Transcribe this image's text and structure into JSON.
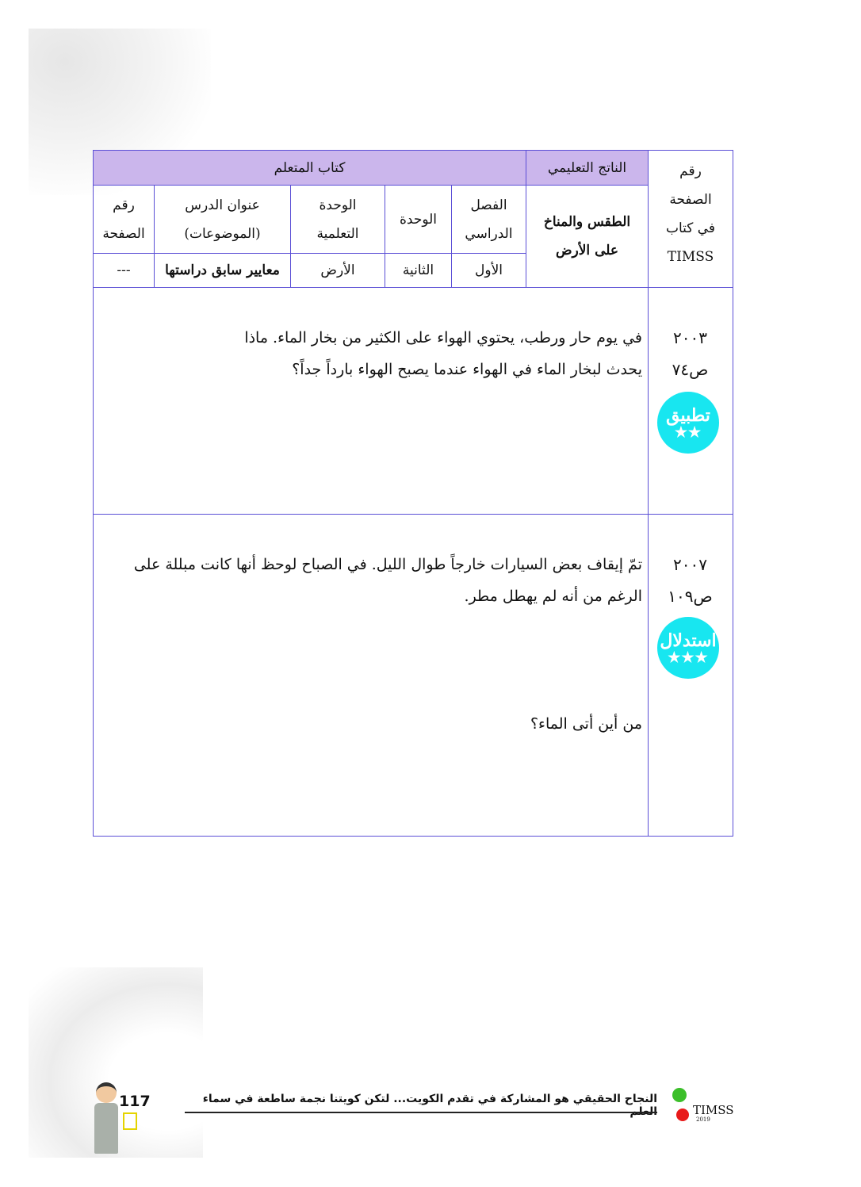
{
  "header_table": {
    "timss_page_header": "رقم الصفحة في كتاب TIMSS",
    "learning_outcome_header": "الناتج التعليمي",
    "student_book_header": "كتاب المتعلم",
    "learning_outcome_value": "الطقس والمناخ على الأرض",
    "columns": [
      {
        "label": "الفصل الدراسي",
        "value": "الأول"
      },
      {
        "label": "الوحدة",
        "value": "الثانية"
      },
      {
        "label": "الوحدة التعلمية",
        "value": "الأرض"
      },
      {
        "label": "عنوان الدرس (الموضوعات)",
        "value": "معايير سابق دراستها"
      },
      {
        "label": "رقم الصفحة",
        "value": "---"
      }
    ]
  },
  "questions": [
    {
      "year": "٢٠٠٣",
      "page": "ص٧٤",
      "badge": "تطبيق",
      "stars": "★★",
      "text": "في يوم حار ورطب، يحتوي الهواء على الكثير من بخار الماء. ماذا يحدث لبخار الماء في الهواء عندما يصبح الهواء بارداً جداً؟",
      "sub": ""
    },
    {
      "year": "٢٠٠٧",
      "page": "ص١٠٩",
      "badge": "استدلال",
      "stars": "★★★",
      "text": "تمّ إيقاف بعض السيارات خارجاً طوال الليل. في الصباح لوحظ أنها كانت مبللة على الرغم من أنه لم يهطل مطر.",
      "sub": "من أين أتى الماء؟"
    }
  ],
  "footer": {
    "slogan": "النجاح الحقيقي هو المشاركة في تقدم الكويت... لتكن كويتنا نجمة ساطعة في سماء العلم",
    "page_number": "117",
    "logo_text": "TIMSS",
    "logo_year": "2019"
  },
  "colors": {
    "border": "#5b4fd6",
    "header_bg": "#cbb6ec",
    "badge": "#18e6f0"
  }
}
